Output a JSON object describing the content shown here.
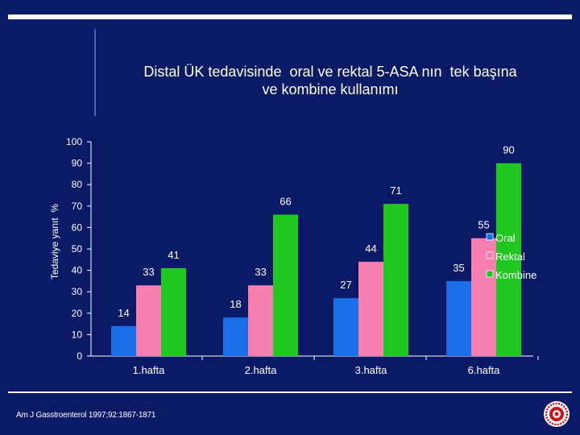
{
  "slide": {
    "title_line1": "Distal ÜK tedavisinde  oral ve rektal 5-ASA nın  tek başına",
    "title_line2": "ve kombine kullanımı",
    "footnote": "Am J Gasstroenterol 1997;92:1867-1871"
  },
  "colors": {
    "background": "#0a1a66",
    "Oral": "#1a6fe8",
    "Rektal": "#f77fb0",
    "Kombine": "#1ec81e"
  },
  "chart_data": {
    "type": "bar",
    "title": "Distal ÜK tedavisinde  oral ve rektal 5-ASA nın  tek başına ve kombine kullanımı",
    "xlabel": "",
    "ylabel": "Tedaviye yanıt  %",
    "ylim": [
      0,
      100
    ],
    "yticks": [
      0,
      10,
      20,
      30,
      40,
      50,
      60,
      70,
      80,
      90,
      100
    ],
    "categories": [
      "1.hafta",
      "2.hafta",
      "3.hafta",
      "6.hafta"
    ],
    "series": [
      {
        "name": "Oral",
        "values": [
          14,
          18,
          27,
          35
        ]
      },
      {
        "name": "Rektal",
        "values": [
          33,
          33,
          44,
          55
        ]
      },
      {
        "name": "Kombine",
        "values": [
          41,
          66,
          71,
          90
        ]
      }
    ],
    "legend_position": "right"
  }
}
